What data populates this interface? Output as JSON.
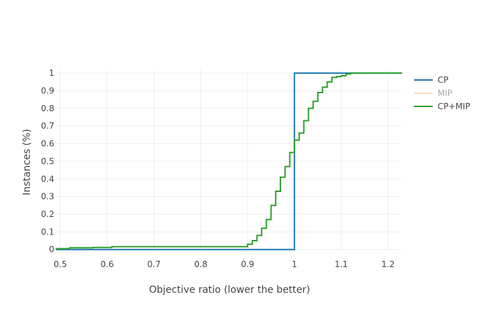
{
  "chart_data": {
    "type": "line",
    "xlabel": "Objective ratio (lower the better)",
    "ylabel": "Instances (%)",
    "xlim": [
      0.49,
      1.23
    ],
    "ylim": [
      -0.005,
      1.02
    ],
    "x_ticks": [
      "0.5",
      "0.6",
      "0.7",
      "0.8",
      "0.9",
      "1",
      "1.1",
      "1.2"
    ],
    "y_ticks": [
      "0",
      "0.1",
      "0.2",
      "0.3",
      "0.4",
      "0.5",
      "0.6",
      "0.7",
      "0.8",
      "0.9",
      "1"
    ],
    "grid": true,
    "legend_position": "top-right",
    "series": [
      {
        "name": "CP",
        "color": "#1f77b4",
        "opacity": 1,
        "x": [
          0.49,
          1.0,
          1.0,
          1.23
        ],
        "y": [
          0.0,
          0.0,
          1.0,
          1.0
        ]
      },
      {
        "name": "MIP",
        "color": "#ffbb78",
        "opacity": 0.5,
        "x": [],
        "y": []
      },
      {
        "name": "CP+MIP",
        "color": "#2ca02c",
        "opacity": 1,
        "x": [
          0.49,
          0.52,
          0.57,
          0.61,
          0.9,
          0.91,
          0.92,
          0.93,
          0.94,
          0.95,
          0.96,
          0.97,
          0.98,
          0.99,
          1.0,
          1.01,
          1.02,
          1.03,
          1.04,
          1.05,
          1.06,
          1.07,
          1.08,
          1.09,
          1.1,
          1.11,
          1.12,
          1.23
        ],
        "y": [
          0.005,
          0.01,
          0.012,
          0.016,
          0.03,
          0.05,
          0.08,
          0.12,
          0.17,
          0.25,
          0.33,
          0.41,
          0.47,
          0.55,
          0.62,
          0.66,
          0.73,
          0.8,
          0.84,
          0.89,
          0.92,
          0.95,
          0.975,
          0.98,
          0.985,
          0.995,
          1.0,
          1.0
        ]
      }
    ]
  }
}
